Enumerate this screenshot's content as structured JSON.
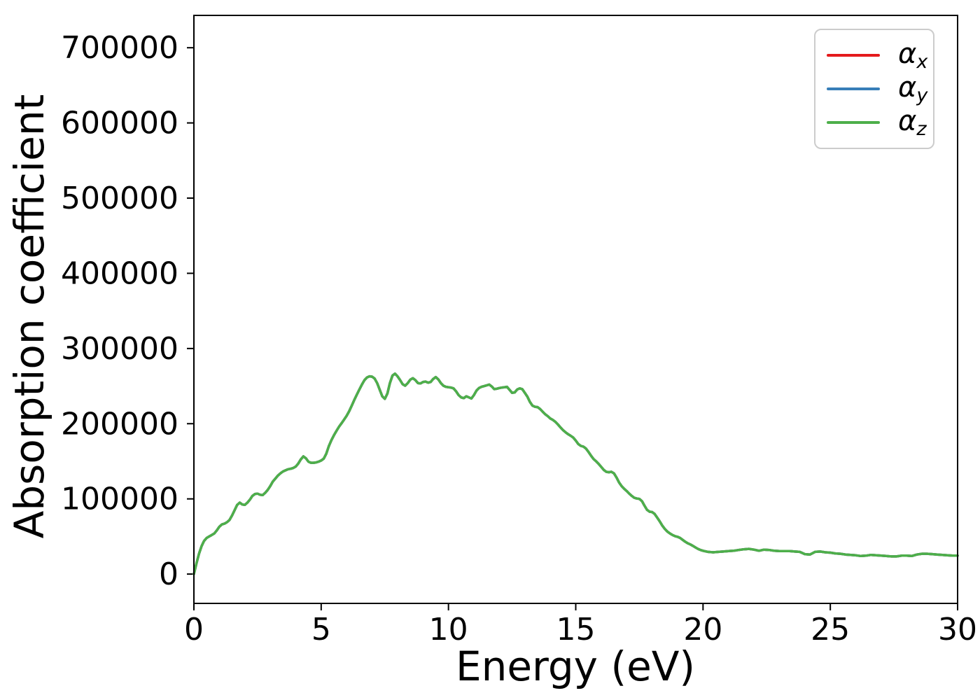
{
  "chart_data": {
    "type": "line",
    "title": "",
    "xlabel": "Energy (eV)",
    "ylabel": "Absorption coefficient",
    "xlim": [
      0,
      30
    ],
    "ylim": [
      -39000,
      743000
    ],
    "grid": false,
    "legend_position": "upper right",
    "x_ticks": [
      {
        "value": 0,
        "label": "0"
      },
      {
        "value": 5,
        "label": "5"
      },
      {
        "value": 10,
        "label": "10"
      },
      {
        "value": 15,
        "label": "15"
      },
      {
        "value": 20,
        "label": "20"
      },
      {
        "value": 25,
        "label": "25"
      },
      {
        "value": 30,
        "label": "30"
      }
    ],
    "y_ticks": [
      {
        "value": 0,
        "label": "0"
      },
      {
        "value": 100000,
        "label": "100000"
      },
      {
        "value": 200000,
        "label": "200000"
      },
      {
        "value": 300000,
        "label": "300000"
      },
      {
        "value": 400000,
        "label": "400000"
      },
      {
        "value": 500000,
        "label": "500000"
      },
      {
        "value": 600000,
        "label": "600000"
      },
      {
        "value": 700000,
        "label": "700000"
      }
    ],
    "series": [
      {
        "name": "alpha_x",
        "label_base": "α",
        "label_sub": "x",
        "color": "#e41a1c"
      },
      {
        "name": "alpha_y",
        "label_base": "α",
        "label_sub": "y",
        "color": "#377eb8"
      },
      {
        "name": "alpha_z",
        "label_base": "α",
        "label_sub": "z",
        "color": "#4daf4a"
      }
    ],
    "series_overlap_note": "all three series are identical and overlap exactly; only the last-drawn (α_z, green) is visible",
    "points": [
      [
        0,
        0
      ],
      [
        0.1,
        14000
      ],
      [
        0.2,
        27000
      ],
      [
        0.3,
        37000
      ],
      [
        0.4,
        44000
      ],
      [
        0.5,
        48000
      ],
      [
        0.6,
        50000
      ],
      [
        0.7,
        52000
      ],
      [
        0.8,
        54000
      ],
      [
        0.9,
        58000
      ],
      [
        1,
        63000
      ],
      [
        1.1,
        66000
      ],
      [
        1.2,
        67000
      ],
      [
        1.3,
        69000
      ],
      [
        1.4,
        72000
      ],
      [
        1.5,
        78000
      ],
      [
        1.6,
        85000
      ],
      [
        1.7,
        92000
      ],
      [
        1.8,
        95000
      ],
      [
        1.9,
        92500
      ],
      [
        2,
        92000
      ],
      [
        2.1,
        95000
      ],
      [
        2.2,
        99000
      ],
      [
        2.3,
        104000
      ],
      [
        2.4,
        106500
      ],
      [
        2.5,
        107000
      ],
      [
        2.6,
        105500
      ],
      [
        2.7,
        105000
      ],
      [
        2.8,
        108000
      ],
      [
        2.9,
        112000
      ],
      [
        3,
        117000
      ],
      [
        3.1,
        123000
      ],
      [
        3.2,
        127000
      ],
      [
        3.3,
        131000
      ],
      [
        3.4,
        134000
      ],
      [
        3.5,
        136500
      ],
      [
        3.6,
        138000
      ],
      [
        3.7,
        139500
      ],
      [
        3.8,
        140000
      ],
      [
        3.9,
        141000
      ],
      [
        4,
        143000
      ],
      [
        4.1,
        147000
      ],
      [
        4.2,
        152500
      ],
      [
        4.3,
        156500
      ],
      [
        4.4,
        154000
      ],
      [
        4.5,
        149500
      ],
      [
        4.6,
        148000
      ],
      [
        4.7,
        148000
      ],
      [
        4.8,
        148500
      ],
      [
        4.9,
        149500
      ],
      [
        5,
        151000
      ],
      [
        5.1,
        153500
      ],
      [
        5.2,
        160000
      ],
      [
        5.3,
        170000
      ],
      [
        5.4,
        178000
      ],
      [
        5.5,
        184500
      ],
      [
        5.6,
        190500
      ],
      [
        5.7,
        196000
      ],
      [
        5.8,
        200500
      ],
      [
        5.9,
        205500
      ],
      [
        6,
        210500
      ],
      [
        6.1,
        216500
      ],
      [
        6.2,
        224000
      ],
      [
        6.3,
        231500
      ],
      [
        6.4,
        238500
      ],
      [
        6.5,
        245500
      ],
      [
        6.6,
        252000
      ],
      [
        6.7,
        258000
      ],
      [
        6.8,
        261500
      ],
      [
        6.9,
        263000
      ],
      [
        7,
        262500
      ],
      [
        7.1,
        260000
      ],
      [
        7.2,
        254000
      ],
      [
        7.3,
        245000
      ],
      [
        7.4,
        236500
      ],
      [
        7.5,
        233000
      ],
      [
        7.6,
        240000
      ],
      [
        7.7,
        254000
      ],
      [
        7.8,
        264000
      ],
      [
        7.9,
        266500
      ],
      [
        8,
        263000
      ],
      [
        8.1,
        258000
      ],
      [
        8.2,
        252500
      ],
      [
        8.3,
        250500
      ],
      [
        8.4,
        254000
      ],
      [
        8.5,
        258500
      ],
      [
        8.6,
        260500
      ],
      [
        8.7,
        258000
      ],
      [
        8.8,
        254000
      ],
      [
        8.9,
        253500
      ],
      [
        9,
        255500
      ],
      [
        9.1,
        256000
      ],
      [
        9.2,
        254500
      ],
      [
        9.3,
        255500
      ],
      [
        9.4,
        259500
      ],
      [
        9.5,
        262000
      ],
      [
        9.6,
        259000
      ],
      [
        9.7,
        254000
      ],
      [
        9.8,
        250500
      ],
      [
        9.9,
        249000
      ],
      [
        10,
        248500
      ],
      [
        10.1,
        248000
      ],
      [
        10.2,
        247000
      ],
      [
        10.3,
        243000
      ],
      [
        10.4,
        238000
      ],
      [
        10.5,
        235000
      ],
      [
        10.6,
        234000
      ],
      [
        10.7,
        236500
      ],
      [
        10.8,
        235000
      ],
      [
        10.9,
        233500
      ],
      [
        11,
        238000
      ],
      [
        11.1,
        244000
      ],
      [
        11.2,
        247500
      ],
      [
        11.3,
        249000
      ],
      [
        11.4,
        250000
      ],
      [
        11.5,
        251000
      ],
      [
        11.6,
        252000
      ],
      [
        11.7,
        249500
      ],
      [
        11.8,
        246000
      ],
      [
        11.9,
        246500
      ],
      [
        12,
        247500
      ],
      [
        12.1,
        248000
      ],
      [
        12.2,
        248500
      ],
      [
        12.3,
        249000
      ],
      [
        12.4,
        245000
      ],
      [
        12.5,
        241000
      ],
      [
        12.6,
        241500
      ],
      [
        12.7,
        245500
      ],
      [
        12.8,
        247000
      ],
      [
        12.9,
        246000
      ],
      [
        13,
        241000
      ],
      [
        13.1,
        236000
      ],
      [
        13.2,
        229000
      ],
      [
        13.3,
        224000
      ],
      [
        13.4,
        222500
      ],
      [
        13.5,
        222000
      ],
      [
        13.6,
        219500
      ],
      [
        13.7,
        216000
      ],
      [
        13.8,
        212500
      ],
      [
        13.9,
        210000
      ],
      [
        14,
        207000
      ],
      [
        14.1,
        205000
      ],
      [
        14.2,
        202500
      ],
      [
        14.3,
        199000
      ],
      [
        14.4,
        195000
      ],
      [
        14.5,
        191500
      ],
      [
        14.6,
        188500
      ],
      [
        14.7,
        186000
      ],
      [
        14.8,
        184000
      ],
      [
        14.9,
        181500
      ],
      [
        15,
        177500
      ],
      [
        15.1,
        173000
      ],
      [
        15.2,
        170500
      ],
      [
        15.3,
        169500
      ],
      [
        15.4,
        167000
      ],
      [
        15.5,
        162500
      ],
      [
        15.6,
        157500
      ],
      [
        15.7,
        153000
      ],
      [
        15.8,
        150000
      ],
      [
        15.9,
        146500
      ],
      [
        16,
        142500
      ],
      [
        16.1,
        138500
      ],
      [
        16.2,
        136000
      ],
      [
        16.3,
        135500
      ],
      [
        16.4,
        136000
      ],
      [
        16.5,
        134000
      ],
      [
        16.6,
        128500
      ],
      [
        16.7,
        122000
      ],
      [
        16.8,
        117000
      ],
      [
        16.9,
        113500
      ],
      [
        17,
        110500
      ],
      [
        17.1,
        107000
      ],
      [
        17.2,
        104000
      ],
      [
        17.3,
        101500
      ],
      [
        17.4,
        100500
      ],
      [
        17.5,
        100000
      ],
      [
        17.6,
        97000
      ],
      [
        17.7,
        91000
      ],
      [
        17.8,
        85500
      ],
      [
        17.9,
        83000
      ],
      [
        18,
        82500
      ],
      [
        18.1,
        80000
      ],
      [
        18.2,
        75000
      ],
      [
        18.3,
        70000
      ],
      [
        18.4,
        64500
      ],
      [
        18.5,
        60000
      ],
      [
        18.6,
        56500
      ],
      [
        18.7,
        54000
      ],
      [
        18.8,
        52000
      ],
      [
        18.9,
        50500
      ],
      [
        19,
        49500
      ],
      [
        19.1,
        48000
      ],
      [
        19.2,
        45500
      ],
      [
        19.3,
        43000
      ],
      [
        19.4,
        41000
      ],
      [
        19.5,
        39500
      ],
      [
        19.6,
        37500
      ],
      [
        19.7,
        35500
      ],
      [
        19.8,
        33500
      ],
      [
        19.9,
        32000
      ],
      [
        20,
        31000
      ],
      [
        20.2,
        29500
      ],
      [
        20.4,
        29000
      ],
      [
        20.6,
        29500
      ],
      [
        20.8,
        30000
      ],
      [
        21,
        30500
      ],
      [
        21.2,
        31000
      ],
      [
        21.4,
        32000
      ],
      [
        21.6,
        33000
      ],
      [
        21.8,
        33500
      ],
      [
        22,
        32500
      ],
      [
        22.2,
        31000
      ],
      [
        22.4,
        32500
      ],
      [
        22.6,
        32000
      ],
      [
        22.8,
        31000
      ],
      [
        23,
        30500
      ],
      [
        23.2,
        30500
      ],
      [
        23.4,
        30500
      ],
      [
        23.6,
        30000
      ],
      [
        23.8,
        29500
      ],
      [
        24,
        26500
      ],
      [
        24.2,
        26000
      ],
      [
        24.4,
        29500
      ],
      [
        24.6,
        30000
      ],
      [
        24.8,
        29000
      ],
      [
        25,
        28500
      ],
      [
        25.2,
        27500
      ],
      [
        25.4,
        27000
      ],
      [
        25.6,
        26000
      ],
      [
        25.8,
        25500
      ],
      [
        26,
        25000
      ],
      [
        26.2,
        24000
      ],
      [
        26.4,
        24500
      ],
      [
        26.6,
        25500
      ],
      [
        26.8,
        25000
      ],
      [
        27,
        24500
      ],
      [
        27.2,
        24000
      ],
      [
        27.4,
        23500
      ],
      [
        27.6,
        23500
      ],
      [
        27.8,
        24500
      ],
      [
        28,
        24500
      ],
      [
        28.2,
        24000
      ],
      [
        28.4,
        26000
      ],
      [
        28.6,
        27000
      ],
      [
        28.8,
        27000
      ],
      [
        29,
        26500
      ],
      [
        29.2,
        26000
      ],
      [
        29.4,
        25500
      ],
      [
        29.6,
        25000
      ],
      [
        29.8,
        24500
      ],
      [
        30,
        24500
      ]
    ]
  }
}
